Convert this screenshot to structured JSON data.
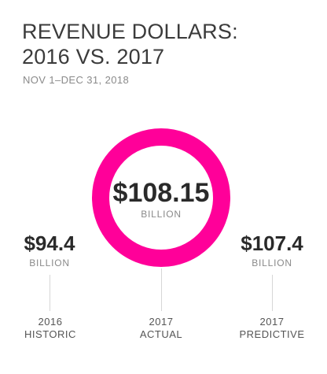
{
  "title_lines": [
    "REVENUE DOLLARS:",
    "2016 VS. 2017"
  ],
  "subtitle": "NOV 1–DEC 31, 2018",
  "colors": {
    "ring": "#ff0099",
    "text": "#2a2a2a",
    "muted": "#8a8a8a",
    "connector": "#d6d6d6"
  },
  "chart_data": {
    "type": "bar",
    "title": "REVENUE DOLLARS: 2016 VS. 2017",
    "subtitle": "NOV 1–DEC 31, 2018",
    "categories": [
      "2016 HISTORIC",
      "2017 ACTUAL",
      "2017 PREDICTIVE"
    ],
    "values": [
      94.4,
      108.15,
      107.4
    ],
    "unit": "BILLION",
    "points": [
      {
        "display": "$94.4",
        "unit": "BILLION",
        "year": "2016",
        "label": "HISTORIC"
      },
      {
        "display": "$108.15",
        "unit": "BILLION",
        "year": "2017",
        "label": "ACTUAL"
      },
      {
        "display": "$107.4",
        "unit": "BILLION",
        "year": "2017",
        "label": "PREDICTIVE"
      }
    ]
  }
}
